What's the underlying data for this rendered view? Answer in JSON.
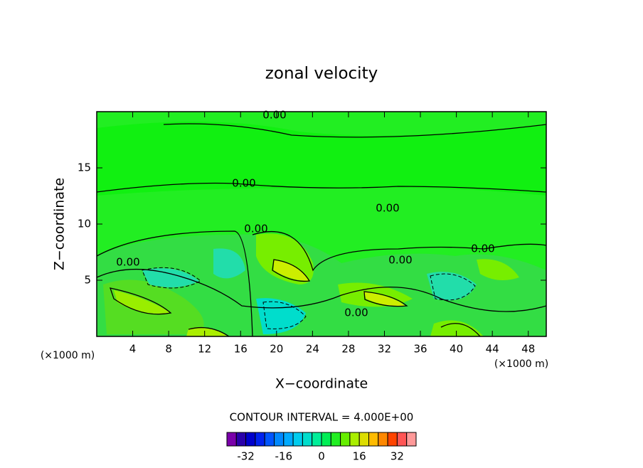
{
  "chart_data": {
    "type": "contour",
    "title": "zonal velocity",
    "x_label": "X−coordinate",
    "y_label": "Z−coordinate",
    "x_unit": "(×1000 m)",
    "xlim": [
      0,
      50
    ],
    "ylim": [
      0,
      20
    ],
    "xticks": [
      4,
      8,
      12,
      16,
      20,
      24,
      28,
      32,
      36,
      40,
      44,
      48
    ],
    "yticks": [
      5,
      10,
      15
    ],
    "contour_interval_text": "CONTOUR INTERVAL = 4.000E+00",
    "contour_labels": [
      "0.00",
      "0.00",
      "0.00",
      "0.00",
      "0.00",
      "0.00",
      "0.00",
      "0.00"
    ],
    "levels": [
      -40,
      -36,
      -32,
      -28,
      -24,
      -20,
      -16,
      -12,
      -8,
      -4,
      0,
      4,
      8,
      12,
      16,
      20,
      24,
      28,
      32,
      36,
      40
    ],
    "colors": [
      "#7a00aa",
      "#2a00aa",
      "#0000cc",
      "#0022ee",
      "#0055ff",
      "#0088ff",
      "#00aaff",
      "#00ccee",
      "#00ddcc",
      "#00ee99",
      "#00ee55",
      "#22ee22",
      "#66ee00",
      "#aaee00",
      "#dddd00",
      "#ffbb00",
      "#ff8800",
      "#ff4400",
      "#ff5555",
      "#ff9999"
    ],
    "cticks": [
      -32,
      -16,
      0,
      16,
      32
    ]
  }
}
